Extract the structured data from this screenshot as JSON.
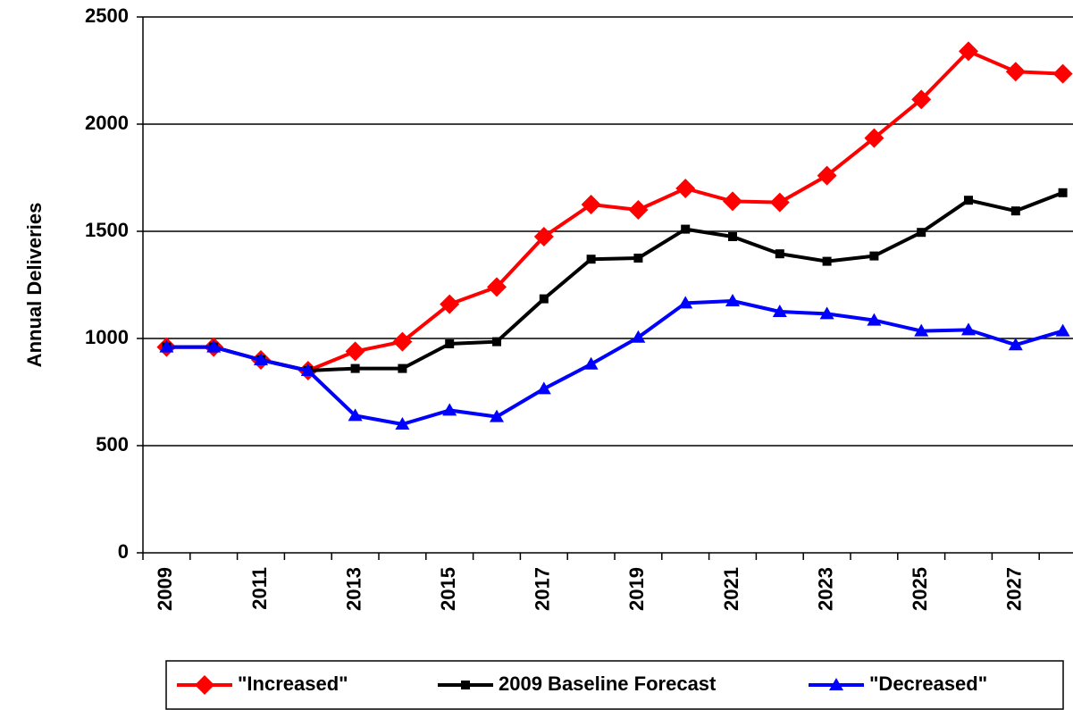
{
  "chart_data": {
    "type": "line",
    "y_label": "Annual Deliveries",
    "categories": [
      "2009",
      null,
      "2011",
      null,
      "2013",
      null,
      "2015",
      null,
      "2017",
      null,
      "2019",
      null,
      "2021",
      null,
      "2023",
      null,
      "2025",
      null,
      "2027",
      null
    ],
    "series": [
      {
        "name": "\"Increased\"",
        "color": "#ff0000",
        "marker": "diamond",
        "values": [
          960,
          960,
          900,
          850,
          940,
          985,
          1160,
          1240,
          1475,
          1625,
          1600,
          1700,
          1640,
          1635,
          1760,
          1935,
          2115,
          2340,
          2245,
          2235
        ]
      },
      {
        "name": "2009 Baseline Forecast",
        "color": "#000000",
        "marker": "square",
        "values": [
          960,
          960,
          900,
          850,
          860,
          860,
          975,
          985,
          1185,
          1370,
          1375,
          1510,
          1475,
          1395,
          1360,
          1385,
          1495,
          1645,
          1595,
          1680
        ]
      },
      {
        "name": "\"Decreased\"",
        "color": "#0000ff",
        "marker": "triangle",
        "values": [
          960,
          960,
          900,
          850,
          640,
          600,
          665,
          635,
          765,
          880,
          1005,
          1165,
          1175,
          1125,
          1115,
          1085,
          1035,
          1040,
          970,
          1035
        ]
      }
    ],
    "ylim": [
      0,
      2500
    ],
    "yticks": [
      0,
      500,
      1000,
      1500,
      2000,
      2500
    ],
    "grid": true,
    "legend": "bottom"
  }
}
